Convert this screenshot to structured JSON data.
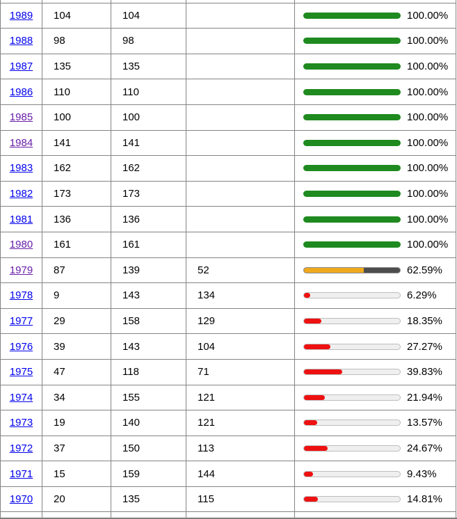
{
  "colors": {
    "green": "#1f8a1f",
    "yellow": "#efa91f",
    "yellow_remainder": "#4d4d4d",
    "red": "#ee1111",
    "track": "#efefef",
    "border": "#848484",
    "link_blue": "#0000ee",
    "link_visited": "#681da8"
  },
  "rows": [
    {
      "year": "1989",
      "col2": "104",
      "col3": "104",
      "col4": "",
      "percent_label": "100.00%",
      "percent": 100,
      "bar_style": "green",
      "visited": false
    },
    {
      "year": "1988",
      "col2": "98",
      "col3": "98",
      "col4": "",
      "percent_label": "100.00%",
      "percent": 100,
      "bar_style": "green",
      "visited": false
    },
    {
      "year": "1987",
      "col2": "135",
      "col3": "135",
      "col4": "",
      "percent_label": "100.00%",
      "percent": 100,
      "bar_style": "green",
      "visited": false
    },
    {
      "year": "1986",
      "col2": "110",
      "col3": "110",
      "col4": "",
      "percent_label": "100.00%",
      "percent": 100,
      "bar_style": "green",
      "visited": false
    },
    {
      "year": "1985",
      "col2": "100",
      "col3": "100",
      "col4": "",
      "percent_label": "100.00%",
      "percent": 100,
      "bar_style": "green",
      "visited": true
    },
    {
      "year": "1984",
      "col2": "141",
      "col3": "141",
      "col4": "",
      "percent_label": "100.00%",
      "percent": 100,
      "bar_style": "green",
      "visited": true
    },
    {
      "year": "1983",
      "col2": "162",
      "col3": "162",
      "col4": "",
      "percent_label": "100.00%",
      "percent": 100,
      "bar_style": "green",
      "visited": false
    },
    {
      "year": "1982",
      "col2": "173",
      "col3": "173",
      "col4": "",
      "percent_label": "100.00%",
      "percent": 100,
      "bar_style": "green",
      "visited": false
    },
    {
      "year": "1981",
      "col2": "136",
      "col3": "136",
      "col4": "",
      "percent_label": "100.00%",
      "percent": 100,
      "bar_style": "green",
      "visited": false
    },
    {
      "year": "1980",
      "col2": "161",
      "col3": "161",
      "col4": "",
      "percent_label": "100.00%",
      "percent": 100,
      "bar_style": "green",
      "visited": true
    },
    {
      "year": "1979",
      "col2": "87",
      "col3": "139",
      "col4": "52",
      "percent_label": "62.59%",
      "percent": 62.59,
      "bar_style": "yellow",
      "visited": true
    },
    {
      "year": "1978",
      "col2": "9",
      "col3": "143",
      "col4": "134",
      "percent_label": "6.29%",
      "percent": 6.29,
      "bar_style": "red",
      "visited": false
    },
    {
      "year": "1977",
      "col2": "29",
      "col3": "158",
      "col4": "129",
      "percent_label": "18.35%",
      "percent": 18.35,
      "bar_style": "red",
      "visited": false
    },
    {
      "year": "1976",
      "col2": "39",
      "col3": "143",
      "col4": "104",
      "percent_label": "27.27%",
      "percent": 27.27,
      "bar_style": "red",
      "visited": false
    },
    {
      "year": "1975",
      "col2": "47",
      "col3": "118",
      "col4": "71",
      "percent_label": "39.83%",
      "percent": 39.83,
      "bar_style": "red",
      "visited": false
    },
    {
      "year": "1974",
      "col2": "34",
      "col3": "155",
      "col4": "121",
      "percent_label": "21.94%",
      "percent": 21.94,
      "bar_style": "red",
      "visited": false
    },
    {
      "year": "1973",
      "col2": "19",
      "col3": "140",
      "col4": "121",
      "percent_label": "13.57%",
      "percent": 13.57,
      "bar_style": "red",
      "visited": false
    },
    {
      "year": "1972",
      "col2": "37",
      "col3": "150",
      "col4": "113",
      "percent_label": "24.67%",
      "percent": 24.67,
      "bar_style": "red",
      "visited": false
    },
    {
      "year": "1971",
      "col2": "15",
      "col3": "159",
      "col4": "144",
      "percent_label": "9.43%",
      "percent": 9.43,
      "bar_style": "red",
      "visited": false
    },
    {
      "year": "1970",
      "col2": "20",
      "col3": "135",
      "col4": "115",
      "percent_label": "14.81%",
      "percent": 14.81,
      "bar_style": "red",
      "visited": false
    }
  ]
}
